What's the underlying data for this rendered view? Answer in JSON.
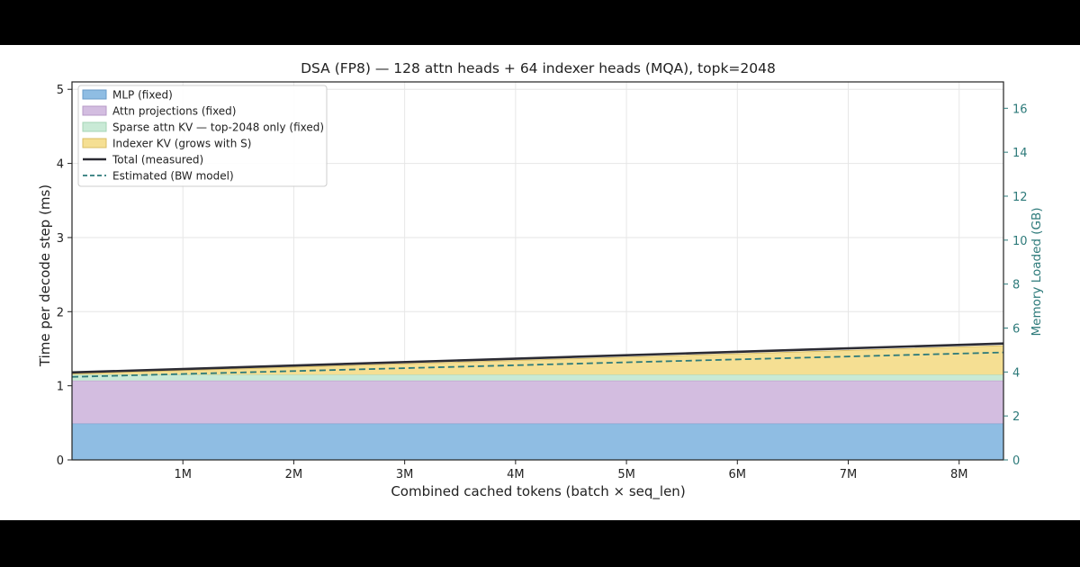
{
  "chart_data": {
    "type": "area",
    "title": "DSA (FP8) — 128 attn heads + 64 indexer heads (MQA), topk=2048",
    "xlabel": "Combined cached tokens (batch × seq_len)",
    "ylabel": "Time per decode step (ms)",
    "y2label": "Memory Loaded (GB)",
    "x_unit": "tokens",
    "xlim": [
      0,
      8400000
    ],
    "ylim": [
      0,
      5.1
    ],
    "y2lim": [
      0,
      17.2
    ],
    "xticks": [
      1000000,
      2000000,
      3000000,
      4000000,
      5000000,
      6000000,
      7000000,
      8000000
    ],
    "xtick_labels": [
      "1M",
      "2M",
      "3M",
      "4M",
      "5M",
      "6M",
      "7M",
      "8M"
    ],
    "yticks": [
      0,
      1,
      2,
      3,
      4,
      5
    ],
    "ytick_labels": [
      "0",
      "1",
      "2",
      "3",
      "4",
      "5"
    ],
    "y2ticks": [
      0,
      2,
      4,
      6,
      8,
      10,
      12,
      14,
      16
    ],
    "y2tick_labels": [
      "0",
      "2",
      "4",
      "6",
      "8",
      "10",
      "12",
      "14",
      "16"
    ],
    "grid": true,
    "legend_position": "top-left",
    "x": [
      0,
      8400000
    ],
    "stacked_series": [
      {
        "name": "MLP (fixed)",
        "values": [
          0.49,
          0.49
        ],
        "color": "#8fbde3",
        "edge": "#6a9cc9"
      },
      {
        "name": "Attn projections (fixed)",
        "values": [
          0.58,
          0.58
        ],
        "color": "#d3bde0",
        "edge": "#b79ac7"
      },
      {
        "name": "Sparse attn KV — top-2048 only (fixed)",
        "values": [
          0.08,
          0.08
        ],
        "color": "#c9ead6",
        "edge": "#a5d4b6"
      },
      {
        "name": "Indexer KV (grows with S)",
        "values": [
          0.01,
          0.39
        ],
        "color": "#f5df93",
        "edge": "#d9be66"
      }
    ],
    "line_series": [
      {
        "name": "Total (measured)",
        "values": [
          1.18,
          1.57
        ],
        "color": "#2b2b33",
        "style": "solid"
      },
      {
        "name": "Estimated (BW model)",
        "values": [
          1.12,
          1.45
        ],
        "color": "#2d7a7a",
        "style": "dashed"
      }
    ],
    "colors": {
      "axis": "#222222",
      "grid": "#e6e6e6",
      "right_axis": "#2d7a7a"
    }
  }
}
